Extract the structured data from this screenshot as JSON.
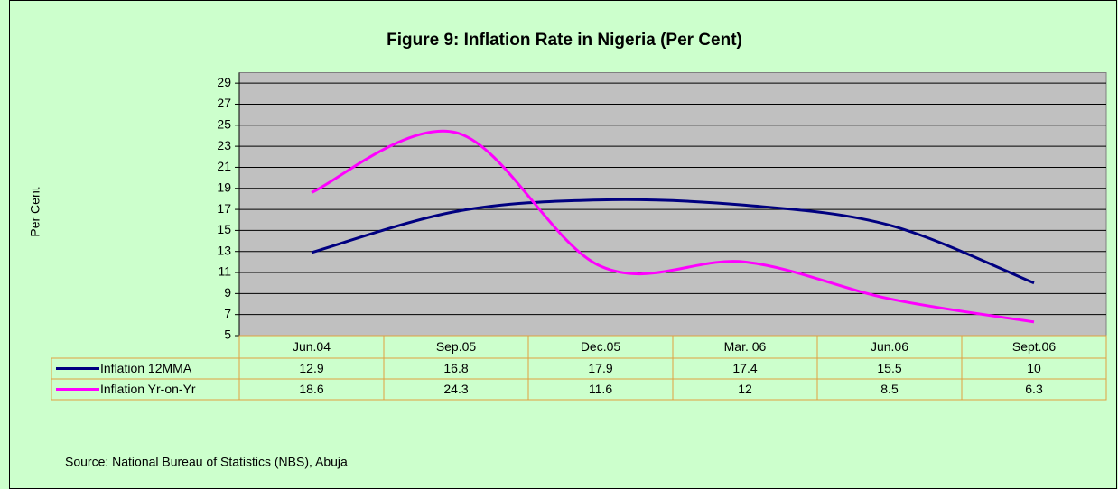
{
  "chart_data": {
    "type": "line",
    "title": "Figure 9: Inflation Rate in Nigeria (Per Cent)",
    "y_label": "Per Cent",
    "source": "Source: National Bureau of Statistics (NBS), Abuja",
    "categories": [
      "Jun.04",
      "Sep.05",
      "Dec.05",
      "Mar. 06",
      "Jun.06",
      "Sept.06"
    ],
    "series": [
      {
        "name": "Inflation 12MMA",
        "color": "#000080",
        "values": [
          12.9,
          16.8,
          17.9,
          17.4,
          15.5,
          10
        ]
      },
      {
        "name": "Inflation Yr-on-Yr",
        "color": "#ff00ff",
        "values": [
          18.6,
          24.3,
          11.6,
          12,
          8.5,
          6.3
        ]
      }
    ],
    "ylim": [
      5,
      30
    ],
    "yticks": [
      5,
      7,
      9,
      11,
      13,
      15,
      17,
      19,
      21,
      23,
      25,
      27,
      29
    ],
    "grid": true,
    "smooth": true,
    "data_table": true
  }
}
